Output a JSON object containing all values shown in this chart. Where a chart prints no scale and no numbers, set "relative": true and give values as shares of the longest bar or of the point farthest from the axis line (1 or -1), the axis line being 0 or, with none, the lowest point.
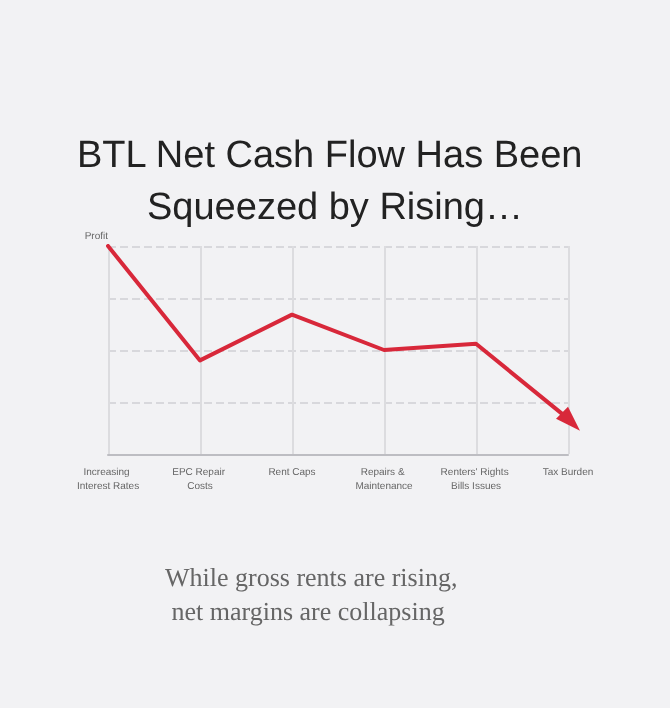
{
  "chart_data": {
    "type": "line",
    "title": "BTL Net Cash Flow Has Been Squeezed by Rising…",
    "ylabel": "Profit",
    "annotations": [
      "While gross rents are rising, net margins are collapsing"
    ],
    "categories": [
      "Increasing Interest Rates",
      "EPC Repair Costs",
      "Rent Caps",
      "Repairs & Maintenance",
      "Renters' Rights Bills Issues",
      "Tax Burden"
    ],
    "series": [
      {
        "color": "#d8283a",
        "values": [
          1,
          0.45,
          0.67,
          0.5,
          0.53,
          0.17
        ]
      }
    ],
    "relative": true,
    "grid": true,
    "marker": "none",
    "line_style": "solid"
  }
}
